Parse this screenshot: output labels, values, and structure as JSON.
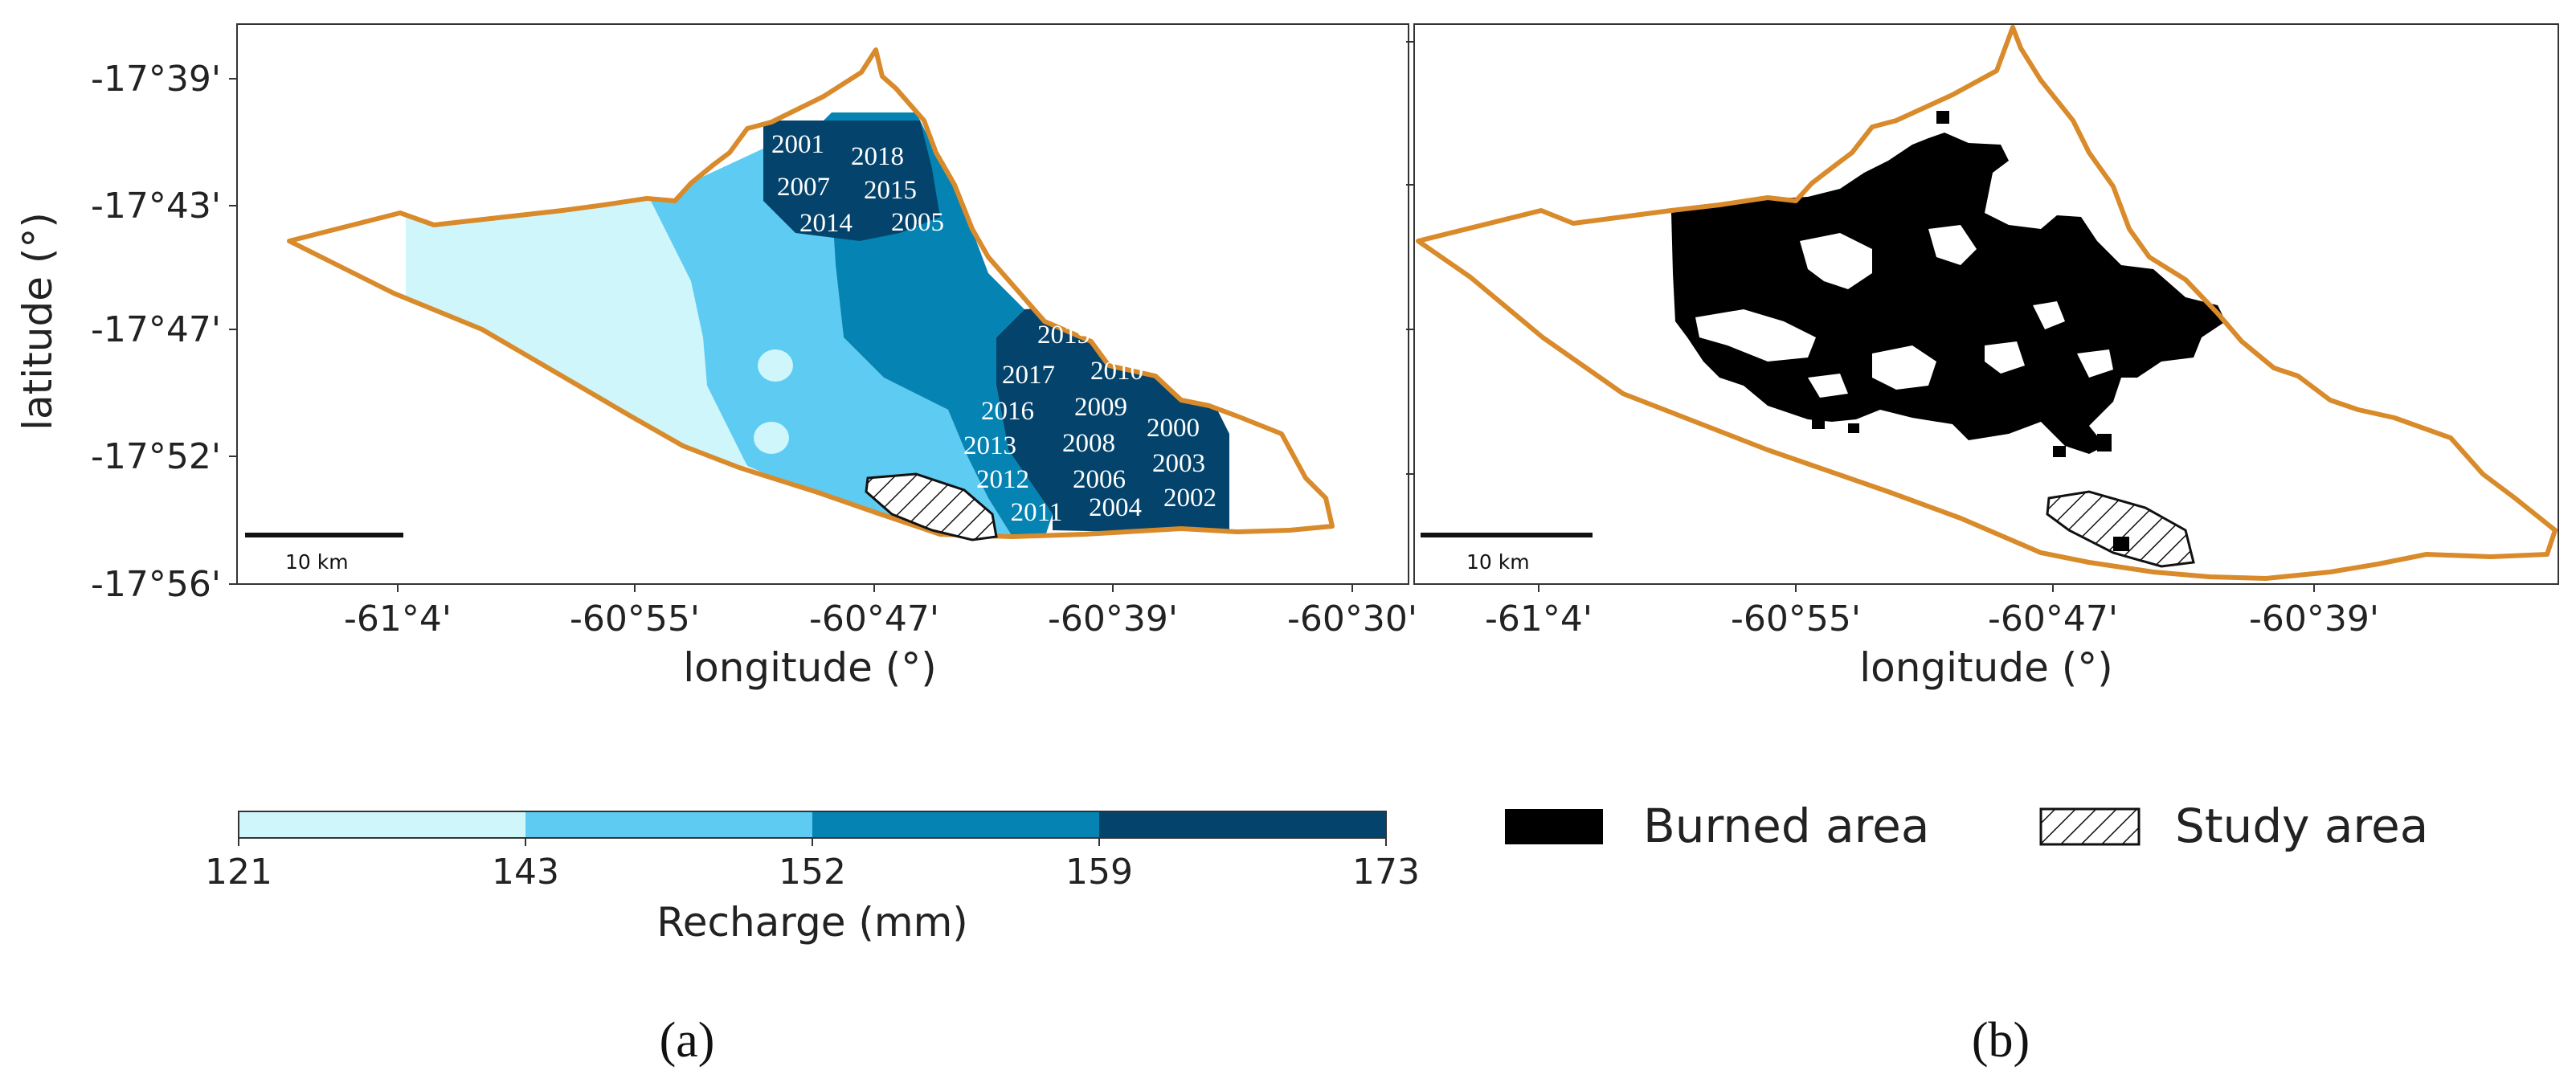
{
  "panels": {
    "a": {
      "tag": "(a)",
      "xlabel": "longitude (°)",
      "ylabel": "latitude (°)",
      "x_ticks": [
        "-61°4'",
        "-60°55'",
        "-60°47'",
        "-60°39'",
        "-60°30'"
      ],
      "y_ticks": [
        "-17°39'",
        "-17°43'",
        "-17°47'",
        "-17°52'",
        "-17°56'"
      ],
      "scale_bar": "10 km",
      "years": [
        "2001",
        "2018",
        "2007",
        "2015",
        "2014",
        "2005",
        "2019",
        "2017",
        "2010",
        "2016",
        "2009",
        "2000",
        "2013",
        "2008",
        "2003",
        "2012",
        "2006",
        "2002",
        "2011",
        "2004"
      ]
    },
    "b": {
      "tag": "(b)",
      "xlabel": "longitude (°)",
      "x_ticks": [
        "-61°4'",
        "-60°55'",
        "-60°47'",
        "-60°39'"
      ],
      "scale_bar": "10 km"
    }
  },
  "colorbar": {
    "label": "Recharge (mm)",
    "ticks": [
      "121",
      "143",
      "152",
      "159",
      "173"
    ],
    "classes": [
      {
        "min": 121,
        "max": 143,
        "color": "#cff6fb"
      },
      {
        "min": 143,
        "max": 152,
        "color": "#5ecbf2"
      },
      {
        "min": 152,
        "max": 159,
        "color": "#0583b3"
      },
      {
        "min": 159,
        "max": 173,
        "color": "#04446c"
      }
    ]
  },
  "legend": {
    "burned": "Burned area",
    "study": "Study area"
  },
  "colors": {
    "boundary": "#d98a2a",
    "burned": "#000000",
    "frame": "#333333"
  }
}
